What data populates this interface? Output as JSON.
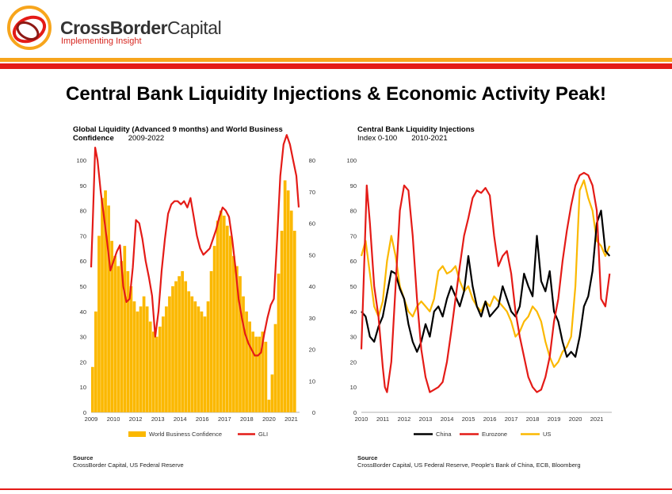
{
  "brand": {
    "name_bold": "CrossBorder",
    "name_regular": "Capital",
    "tagline": "Implementing Insight"
  },
  "colors": {
    "orange": "#f7a51c",
    "red": "#e41b17",
    "yellow": "#fbb800",
    "black": "#000000"
  },
  "main_title": "Central Bank Liquidity Injections & Economic Activity Peak!",
  "chart_data": [
    {
      "type": "bar",
      "title": "Global Liquidity (Advanced 9 months) and World Business Confidence",
      "period": "2009-2022",
      "x_tick_labels": [
        "2009",
        "2010",
        "2012",
        "2013",
        "2014",
        "2016",
        "2017",
        "2018",
        "2020",
        "2021"
      ],
      "y_left_ticks": [
        0,
        10,
        20,
        30,
        40,
        50,
        60,
        70,
        80,
        90,
        100
      ],
      "y_right_ticks": [
        0,
        10,
        20,
        30,
        40,
        50,
        60,
        70,
        80
      ],
      "ylim_left": [
        0,
        100
      ],
      "ylim_right": [
        0,
        80
      ],
      "xlim": [
        2009,
        2022
      ],
      "legend": {
        "position": "bottom",
        "entries": [
          "World Business Confidence",
          "GLI"
        ]
      },
      "series": [
        {
          "name": "World Business Confidence",
          "kind": "bar",
          "axis": "left",
          "x": [
            2009.0,
            2009.2,
            2009.4,
            2009.6,
            2009.8,
            2010.0,
            2010.2,
            2010.4,
            2010.6,
            2010.8,
            2011.0,
            2011.2,
            2011.4,
            2011.6,
            2011.8,
            2012.0,
            2012.2,
            2012.4,
            2012.6,
            2012.8,
            2013.0,
            2013.2,
            2013.4,
            2013.6,
            2013.8,
            2014.0,
            2014.2,
            2014.4,
            2014.6,
            2014.8,
            2015.0,
            2015.2,
            2015.4,
            2015.6,
            2015.8,
            2016.0,
            2016.2,
            2016.4,
            2016.6,
            2016.8,
            2017.0,
            2017.2,
            2017.4,
            2017.6,
            2017.8,
            2018.0,
            2018.2,
            2018.4,
            2018.6,
            2018.8,
            2019.0,
            2019.2,
            2019.4,
            2019.6,
            2019.8,
            2020.0,
            2020.2,
            2020.4,
            2020.6,
            2020.8,
            2021.0,
            2021.2,
            2021.4,
            2021.6
          ],
          "values": [
            18,
            40,
            70,
            85,
            88,
            82,
            68,
            62,
            58,
            60,
            66,
            56,
            50,
            44,
            40,
            42,
            46,
            42,
            36,
            32,
            30,
            34,
            38,
            42,
            46,
            50,
            52,
            54,
            56,
            52,
            48,
            46,
            44,
            42,
            40,
            38,
            44,
            56,
            66,
            76,
            80,
            78,
            74,
            70,
            62,
            58,
            54,
            46,
            40,
            36,
            32,
            30,
            30,
            32,
            28,
            5,
            15,
            35,
            55,
            72,
            92,
            88,
            80,
            72
          ]
        },
        {
          "name": "GLI",
          "kind": "line",
          "axis": "right",
          "x": [
            2009.0,
            2009.1,
            2009.25,
            2009.4,
            2009.6,
            2009.8,
            2010.0,
            2010.2,
            2010.4,
            2010.6,
            2010.8,
            2011.0,
            2011.2,
            2011.4,
            2011.6,
            2011.8,
            2012.0,
            2012.2,
            2012.4,
            2012.6,
            2012.8,
            2013.0,
            2013.2,
            2013.4,
            2013.6,
            2013.8,
            2014.0,
            2014.2,
            2014.4,
            2014.6,
            2014.8,
            2015.0,
            2015.2,
            2015.4,
            2015.6,
            2015.8,
            2016.0,
            2016.2,
            2016.4,
            2016.6,
            2016.8,
            2017.0,
            2017.2,
            2017.4,
            2017.6,
            2017.8,
            2018.0,
            2018.2,
            2018.4,
            2018.6,
            2018.8,
            2019.0,
            2019.2,
            2019.4,
            2019.6,
            2019.8,
            2020.0,
            2020.2,
            2020.4,
            2020.6,
            2020.8,
            2021.0,
            2021.2,
            2021.4,
            2021.6,
            2021.8,
            2021.95
          ],
          "values": [
            46,
            60,
            84,
            80,
            70,
            62,
            54,
            45,
            48,
            51,
            53,
            40,
            35,
            36,
            46,
            61,
            60,
            55,
            48,
            43,
            37,
            24,
            32,
            45,
            55,
            63,
            66,
            67,
            67,
            66,
            67,
            65,
            68,
            62,
            56,
            52,
            50,
            51,
            52,
            55,
            58,
            62,
            65,
            64,
            62,
            55,
            46,
            36,
            30,
            25,
            22,
            20,
            18,
            18,
            19,
            25,
            30,
            34,
            36,
            55,
            75,
            85,
            88,
            85,
            80,
            75,
            65
          ]
        }
      ]
    },
    {
      "type": "line",
      "title": "Central Bank Liquidity Injections",
      "subtitle": "Index 0-100",
      "period": "2010-2021",
      "x_tick_labels": [
        "2010",
        "2011",
        "2012",
        "2013",
        "2014",
        "2015",
        "2016",
        "2017",
        "2018",
        "2019",
        "2020",
        "2021"
      ],
      "y_ticks": [
        0,
        10,
        20,
        30,
        40,
        50,
        60,
        70,
        80,
        90,
        100
      ],
      "ylim": [
        0,
        100
      ],
      "xlim": [
        2010,
        2021.7
      ],
      "legend": {
        "position": "bottom",
        "entries": [
          "China",
          "Eurozone",
          "US"
        ]
      },
      "series": [
        {
          "name": "China",
          "x": [
            2010.0,
            2010.2,
            2010.4,
            2010.6,
            2010.8,
            2011.0,
            2011.2,
            2011.4,
            2011.6,
            2011.8,
            2012.0,
            2012.2,
            2012.4,
            2012.6,
            2012.8,
            2013.0,
            2013.2,
            2013.4,
            2013.6,
            2013.8,
            2014.0,
            2014.2,
            2014.4,
            2014.6,
            2014.8,
            2015.0,
            2015.2,
            2015.4,
            2015.6,
            2015.8,
            2016.0,
            2016.2,
            2016.4,
            2016.6,
            2016.8,
            2017.0,
            2017.2,
            2017.4,
            2017.6,
            2017.8,
            2018.0,
            2018.2,
            2018.4,
            2018.6,
            2018.8,
            2019.0,
            2019.2,
            2019.4,
            2019.6,
            2019.8,
            2020.0,
            2020.2,
            2020.4,
            2020.6,
            2020.8,
            2021.0,
            2021.2,
            2021.4,
            2021.6
          ],
          "values": [
            40,
            38,
            30,
            28,
            34,
            38,
            47,
            56,
            55,
            49,
            45,
            35,
            28,
            24,
            28,
            35,
            30,
            40,
            42,
            38,
            45,
            50,
            46,
            42,
            48,
            62,
            50,
            42,
            38,
            44,
            38,
            40,
            42,
            50,
            45,
            40,
            38,
            42,
            55,
            50,
            46,
            70,
            52,
            48,
            56,
            40,
            36,
            28,
            22,
            24,
            22,
            30,
            42,
            46,
            56,
            75,
            80,
            64,
            62
          ]
        },
        {
          "name": "Eurozone",
          "x": [
            2010.0,
            2010.1,
            2010.25,
            2010.4,
            2010.6,
            2010.8,
            2011.0,
            2011.1,
            2011.2,
            2011.4,
            2011.6,
            2011.8,
            2012.0,
            2012.2,
            2012.4,
            2012.6,
            2012.8,
            2013.0,
            2013.2,
            2013.4,
            2013.6,
            2013.8,
            2014.0,
            2014.2,
            2014.4,
            2014.6,
            2014.8,
            2015.0,
            2015.2,
            2015.4,
            2015.6,
            2015.8,
            2016.0,
            2016.2,
            2016.4,
            2016.6,
            2016.8,
            2017.0,
            2017.2,
            2017.4,
            2017.6,
            2017.8,
            2018.0,
            2018.2,
            2018.4,
            2018.6,
            2018.8,
            2019.0,
            2019.2,
            2019.4,
            2019.6,
            2019.8,
            2020.0,
            2020.2,
            2020.4,
            2020.6,
            2020.8,
            2021.0,
            2021.2,
            2021.4,
            2021.6
          ],
          "values": [
            25,
            50,
            90,
            75,
            50,
            38,
            18,
            10,
            8,
            20,
            50,
            80,
            90,
            88,
            70,
            45,
            25,
            14,
            8,
            9,
            10,
            12,
            20,
            32,
            45,
            58,
            70,
            77,
            85,
            88,
            87,
            89,
            86,
            70,
            58,
            62,
            64,
            55,
            40,
            30,
            22,
            14,
            10,
            8,
            9,
            14,
            22,
            36,
            45,
            60,
            72,
            82,
            90,
            94,
            95,
            94,
            90,
            80,
            45,
            42,
            55
          ]
        },
        {
          "name": "US",
          "x": [
            2010.0,
            2010.2,
            2010.4,
            2010.6,
            2010.8,
            2011.0,
            2011.2,
            2011.4,
            2011.6,
            2011.8,
            2012.0,
            2012.2,
            2012.4,
            2012.6,
            2012.8,
            2013.0,
            2013.2,
            2013.4,
            2013.6,
            2013.8,
            2014.0,
            2014.2,
            2014.4,
            2014.6,
            2014.8,
            2015.0,
            2015.2,
            2015.4,
            2015.6,
            2015.8,
            2016.0,
            2016.2,
            2016.4,
            2016.6,
            2016.8,
            2017.0,
            2017.2,
            2017.4,
            2017.6,
            2017.8,
            2018.0,
            2018.2,
            2018.4,
            2018.6,
            2018.8,
            2019.0,
            2019.2,
            2019.4,
            2019.6,
            2019.8,
            2020.0,
            2020.2,
            2020.4,
            2020.6,
            2020.8,
            2021.0,
            2021.2,
            2021.4,
            2021.6
          ],
          "values": [
            62,
            68,
            55,
            42,
            38,
            44,
            60,
            70,
            62,
            50,
            45,
            40,
            38,
            42,
            44,
            42,
            40,
            45,
            56,
            58,
            55,
            56,
            58,
            52,
            48,
            50,
            45,
            42,
            40,
            44,
            42,
            46,
            44,
            42,
            40,
            36,
            30,
            32,
            36,
            38,
            42,
            40,
            36,
            28,
            22,
            18,
            20,
            24,
            26,
            30,
            50,
            88,
            92,
            85,
            80,
            68,
            66,
            62,
            66
          ]
        }
      ]
    }
  ],
  "charts_text": [
    {
      "ylabel_left": "",
      "ylabel_right": ""
    },
    {
      "ylabel": ""
    }
  ],
  "sources": [
    {
      "heading": "Source",
      "text": "CrossBorder Capital, US Federal Reserve"
    },
    {
      "heading": "Source",
      "text": "CrossBorder Capital, US Federal Reserve, People's Bank of China, ECB, Bloomberg"
    }
  ]
}
